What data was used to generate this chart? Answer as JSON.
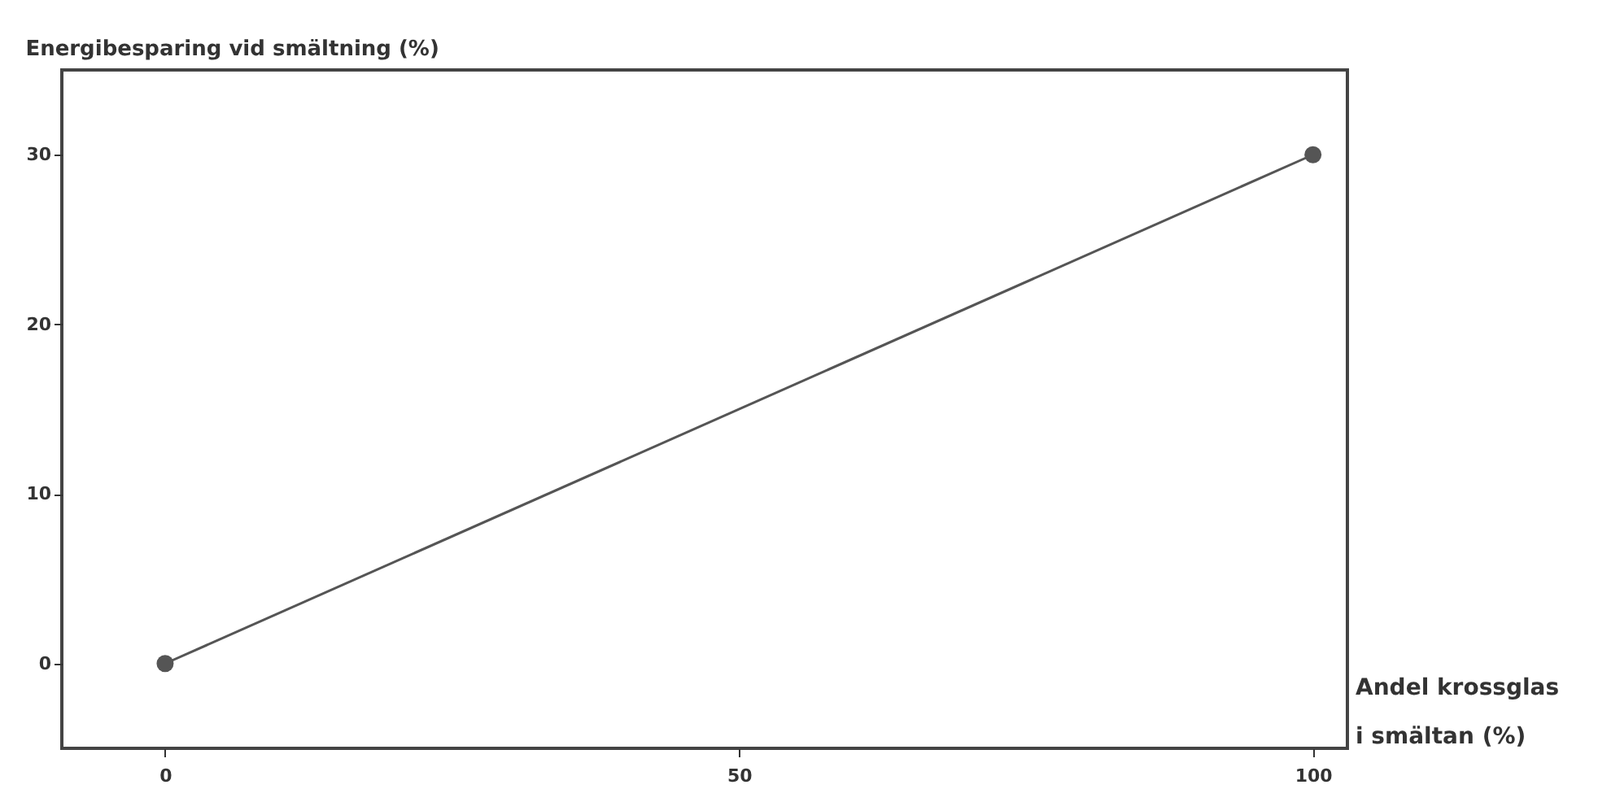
{
  "chart_data": {
    "type": "line",
    "title": "Energibesparing vid smältning (%)",
    "xlabel": "Andel krossglas\ni smältan (%)",
    "x": [
      0,
      100
    ],
    "series": [
      {
        "color": "#555555",
        "values": [
          0,
          30
        ]
      }
    ],
    "xlim": [
      -9,
      103
    ],
    "xticks": [
      0,
      50,
      100
    ],
    "ylim": [
      -5,
      35
    ],
    "yticks": [
      0,
      10,
      20,
      30
    ],
    "marker": "circle",
    "line_style": "solid",
    "grid": false,
    "legend": false
  }
}
